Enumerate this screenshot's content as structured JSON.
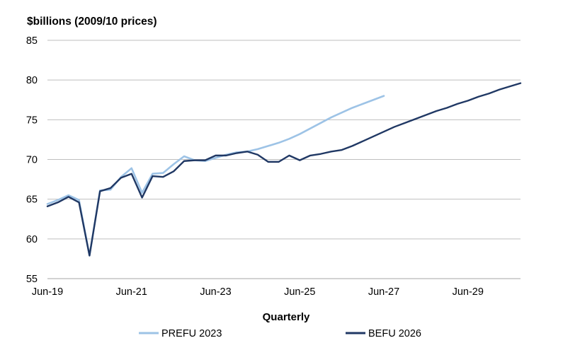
{
  "chart_data": {
    "type": "line",
    "title": "",
    "ylabel": "$billions (2009/10 prices)",
    "xlabel": "Quarterly",
    "ylim": [
      55,
      85
    ],
    "y_ticks": [
      55,
      60,
      65,
      70,
      75,
      80,
      85
    ],
    "x_tick_labels": [
      "Jun-19",
      "Jun-21",
      "Jun-23",
      "Jun-25",
      "Jun-27",
      "Jun-29"
    ],
    "x_tick_quarter_index": [
      0,
      8,
      16,
      24,
      32,
      40
    ],
    "x_range_quarters": [
      0,
      45
    ],
    "grid": true,
    "legend_position": "bottom",
    "series": [
      {
        "name": "PREFU 2023",
        "color": "#9dc3e6",
        "x_quarter_index": [
          0,
          1,
          2,
          3,
          4,
          5,
          6,
          7,
          8,
          9,
          10,
          11,
          12,
          13,
          14,
          15,
          16,
          17,
          18,
          19,
          20,
          21,
          22,
          23,
          24,
          25,
          26,
          27,
          28,
          29,
          30,
          31,
          32
        ],
        "values": [
          64.4,
          64.9,
          65.5,
          64.9,
          57.9,
          66.1,
          66.2,
          67.8,
          68.9,
          65.8,
          68.2,
          68.3,
          69.4,
          70.4,
          69.9,
          69.8,
          70.2,
          70.6,
          70.9,
          71.0,
          71.3,
          71.7,
          72.1,
          72.6,
          73.2,
          73.9,
          74.6,
          75.3,
          75.9,
          76.5,
          77.0,
          77.5,
          78.0
        ]
      },
      {
        "name": "BEFU 2026",
        "color": "#203864",
        "x_quarter_index": [
          0,
          1,
          2,
          3,
          4,
          5,
          6,
          7,
          8,
          9,
          10,
          11,
          12,
          13,
          14,
          15,
          16,
          17,
          18,
          19,
          20,
          21,
          22,
          23,
          24,
          25,
          26,
          27,
          28,
          29,
          30,
          31,
          32,
          33,
          34,
          35,
          36,
          37,
          38,
          39,
          40,
          41,
          42,
          43,
          44,
          45
        ],
        "values": [
          64.1,
          64.6,
          65.3,
          64.6,
          57.9,
          66.0,
          66.4,
          67.7,
          68.2,
          65.2,
          67.9,
          67.8,
          68.5,
          69.8,
          69.9,
          69.9,
          70.5,
          70.5,
          70.8,
          71.0,
          70.6,
          69.7,
          69.7,
          70.5,
          69.9,
          70.5,
          70.7,
          71.0,
          71.2,
          71.7,
          72.3,
          72.9,
          73.5,
          74.1,
          74.6,
          75.1,
          75.6,
          76.1,
          76.5,
          77.0,
          77.4,
          77.9,
          78.3,
          78.8,
          79.2,
          79.6
        ]
      }
    ]
  }
}
